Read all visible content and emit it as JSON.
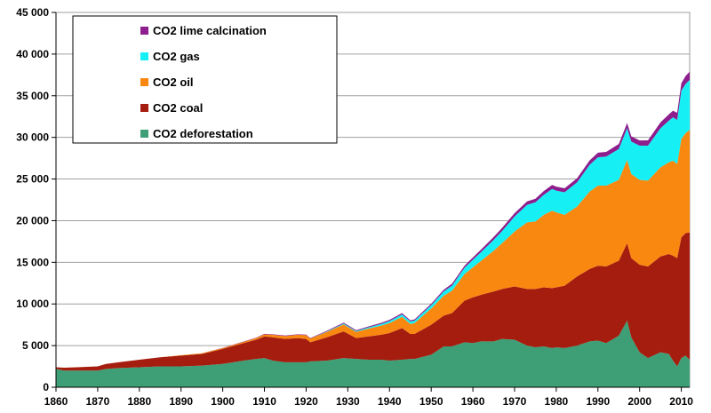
{
  "chart_data": {
    "type": "area",
    "stacked": true,
    "title": "",
    "xlabel": "",
    "ylabel": "",
    "xlim": [
      1860,
      2012
    ],
    "ylim": [
      0,
      45000
    ],
    "grid": true,
    "legend_position": "top-left",
    "x_ticks": [
      1860,
      1870,
      1880,
      1890,
      1900,
      1910,
      1920,
      1930,
      1940,
      1950,
      1960,
      1970,
      1980,
      1990,
      2000,
      2010
    ],
    "x_tick_labels": [
      "1860",
      "1870",
      "1880",
      "1890",
      "1900",
      "1910",
      "1920",
      "1930",
      "1940",
      "1950",
      "1960",
      "1970",
      "1980",
      "1990",
      "2000",
      "2010"
    ],
    "y_ticks": [
      0,
      5000,
      10000,
      15000,
      20000,
      25000,
      30000,
      35000,
      40000,
      45000
    ],
    "y_tick_labels": [
      "0",
      "5 000",
      "10 000",
      "15 000",
      "20 000",
      "25 000",
      "30 000",
      "35 000",
      "40 000",
      "45 000"
    ],
    "x": [
      1860,
      1862,
      1865,
      1870,
      1872,
      1875,
      1880,
      1885,
      1890,
      1895,
      1900,
      1905,
      1908,
      1910,
      1912,
      1915,
      1918,
      1920,
      1921,
      1925,
      1929,
      1932,
      1935,
      1938,
      1940,
      1943,
      1945,
      1946,
      1950,
      1953,
      1955,
      1958,
      1960,
      1962,
      1965,
      1967,
      1970,
      1973,
      1975,
      1977,
      1979,
      1980,
      1982,
      1985,
      1988,
      1990,
      1992,
      1995,
      1997,
      1998,
      2000,
      2002,
      2005,
      2007,
      2008,
      2009,
      2010,
      2011,
      2012
    ],
    "series": [
      {
        "name": "CO2 deforestation",
        "color": "#3e9e76",
        "values": [
          2200,
          2000,
          2000,
          2000,
          2200,
          2300,
          2400,
          2500,
          2500,
          2600,
          2800,
          3200,
          3400,
          3500,
          3200,
          3000,
          3000,
          3000,
          3100,
          3200,
          3500,
          3400,
          3300,
          3300,
          3200,
          3300,
          3400,
          3400,
          3900,
          4900,
          4900,
          5400,
          5300,
          5500,
          5500,
          5800,
          5700,
          5000,
          4800,
          4900,
          4700,
          4800,
          4700,
          5000,
          5500,
          5600,
          5300,
          6200,
          8000,
          6000,
          4200,
          3500,
          4200,
          4000,
          3200,
          2500,
          3500,
          3800,
          3300
        ]
      },
      {
        "name": "CO2 coal",
        "color": "#a51d0e",
        "values": [
          200,
          350,
          400,
          500,
          600,
          700,
          900,
          1100,
          1300,
          1400,
          1800,
          2100,
          2300,
          2600,
          2800,
          2800,
          2900,
          2800,
          2300,
          2800,
          3200,
          2500,
          2800,
          3000,
          3300,
          3800,
          3000,
          3000,
          3600,
          3700,
          4000,
          5000,
          5500,
          5600,
          6000,
          6000,
          6400,
          6800,
          7000,
          7100,
          7200,
          7200,
          7500,
          8300,
          8700,
          9000,
          9200,
          9000,
          9300,
          9500,
          10500,
          11000,
          11500,
          12000,
          12600,
          13000,
          14500,
          14700,
          15300
        ]
      },
      {
        "name": "CO2 oil",
        "color": "#f98811",
        "values": [
          0,
          0,
          0,
          0,
          0,
          0,
          0,
          0,
          50,
          80,
          100,
          150,
          200,
          250,
          300,
          350,
          400,
          450,
          450,
          650,
          850,
          750,
          950,
          1100,
          1200,
          1350,
          1200,
          1300,
          1950,
          2400,
          2700,
          3200,
          3600,
          4100,
          4900,
          5500,
          6600,
          8000,
          8100,
          8700,
          9300,
          9000,
          8500,
          8400,
          9300,
          9600,
          9700,
          9700,
          10000,
          10100,
          10200,
          10300,
          10700,
          11000,
          11400,
          11300,
          11800,
          12000,
          12300
        ]
      },
      {
        "name": "CO2 gas",
        "color": "#16f0f5",
        "values": [
          0,
          0,
          0,
          0,
          0,
          0,
          0,
          0,
          0,
          0,
          0,
          0,
          0,
          0,
          0,
          0,
          0,
          0,
          0,
          50,
          100,
          100,
          150,
          200,
          250,
          300,
          300,
          300,
          400,
          500,
          600,
          750,
          900,
          1050,
          1300,
          1450,
          1800,
          2100,
          2300,
          2400,
          2600,
          2600,
          2700,
          2900,
          3200,
          3400,
          3500,
          3700,
          3800,
          3900,
          4100,
          4200,
          4700,
          5000,
          5200,
          5300,
          5800,
          5900,
          6000
        ]
      },
      {
        "name": "CO2 lime calcination",
        "color": "#8d1e8d",
        "values": [
          0,
          0,
          0,
          0,
          0,
          0,
          0,
          0,
          0,
          0,
          30,
          40,
          50,
          60,
          60,
          60,
          60,
          70,
          60,
          80,
          110,
          100,
          110,
          130,
          140,
          150,
          140,
          150,
          170,
          200,
          230,
          250,
          280,
          300,
          350,
          380,
          400,
          420,
          430,
          450,
          480,
          480,
          480,
          500,
          530,
          560,
          560,
          600,
          620,
          620,
          630,
          650,
          700,
          760,
          800,
          850,
          900,
          950,
          1000
        ]
      }
    ]
  }
}
